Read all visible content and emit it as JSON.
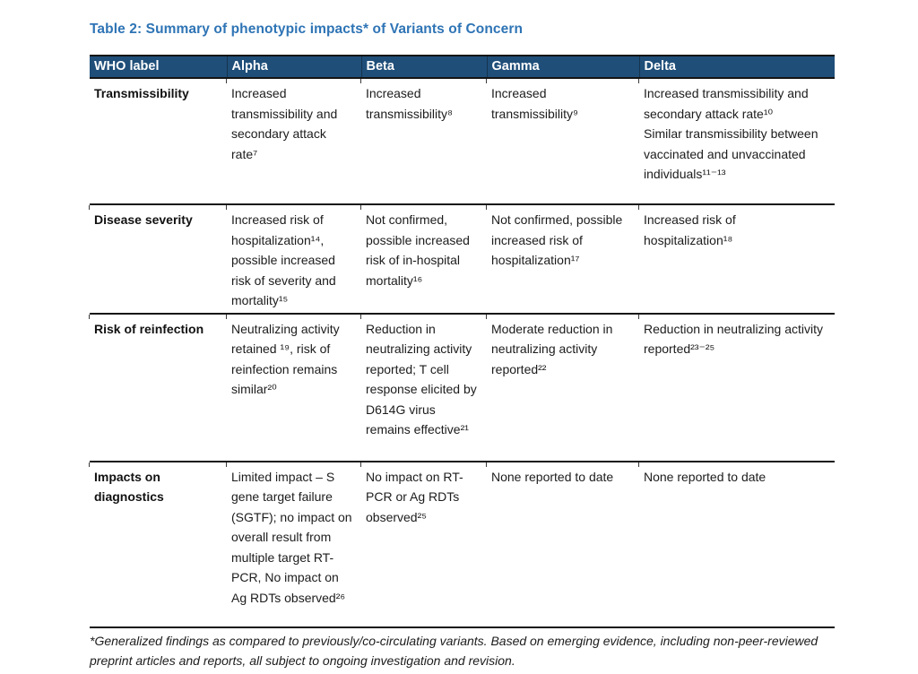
{
  "title": "Table 2: Summary of phenotypic impacts* of Variants of Concern",
  "colors": {
    "header_background": "#1F4E79",
    "title_text": "#2E74B5",
    "body_text": "#1C1C1C",
    "border": "#151515"
  },
  "table": {
    "columns": [
      "WHO label",
      "Alpha",
      "Beta",
      "Gamma",
      "Delta"
    ],
    "rows": [
      {
        "label": "Transmissibility",
        "alpha": "Increased transmissibility and secondary attack rate⁷",
        "beta": "Increased transmissibility⁸",
        "gamma": "Increased transmissibility⁹",
        "delta": "Increased transmissibility and secondary attack rate¹⁰\nSimilar transmissibility between vaccinated and unvaccinated individuals¹¹⁻¹³"
      },
      {
        "label": "Disease severity",
        "alpha": "Increased risk of hospitalization¹⁴, possible increased risk of severity and mortality¹⁵",
        "beta": "Not confirmed, possible increased risk of in-hospital mortality¹⁶",
        "gamma": "Not confirmed, possible increased risk of hospitalization¹⁷",
        "delta": "Increased risk of hospitalization¹⁸"
      },
      {
        "label": "Risk of reinfection",
        "alpha": "Neutralizing activity retained ¹⁹, risk of reinfection remains similar²⁰",
        "beta": "Reduction in neutralizing activity reported; T cell response elicited by D614G virus remains effective²¹",
        "gamma": "Moderate reduction in neutralizing activity reported²²",
        "delta": "Reduction in neutralizing activity reported²³⁻²⁵"
      },
      {
        "label": "Impacts on diagnostics",
        "alpha": "Limited impact – S gene target failure (SGTF); no impact on overall result from multiple target RT-PCR, No impact on Ag RDTs observed²⁶",
        "beta": "No impact on RT-PCR or Ag RDTs observed²⁵",
        "gamma": "None reported to date",
        "delta": "None reported to date"
      }
    ]
  },
  "footnote": "*Generalized findings as compared to previously/co-circulating variants. Based on emerging evidence, including non-peer-reviewed preprint articles and reports, all subject to ongoing investigation and revision."
}
